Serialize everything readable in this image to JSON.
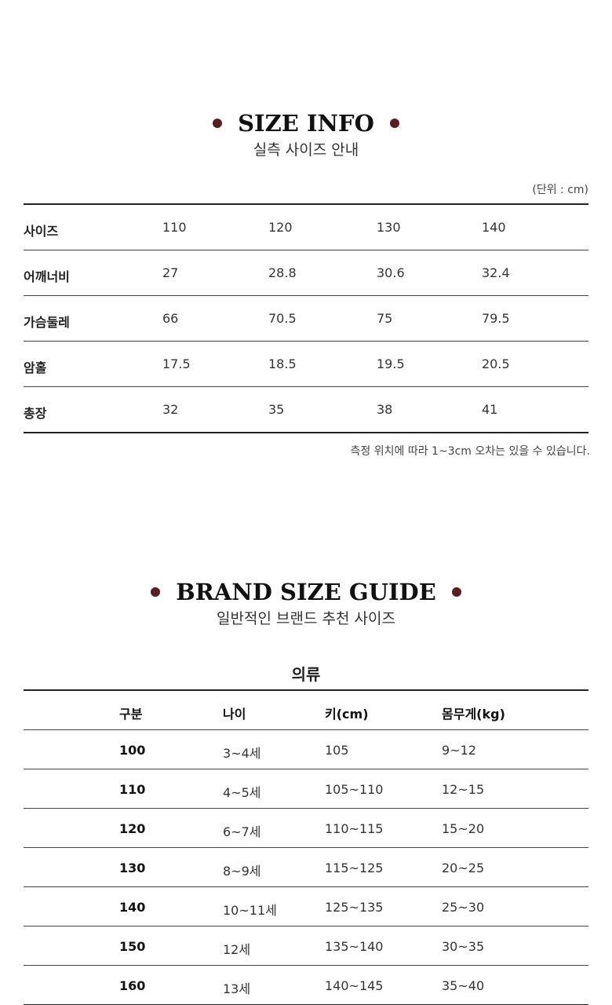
{
  "size_info": {
    "title": "SIZE INFO",
    "subtitle": "실측 사이즈 안내",
    "unit": "(단위 : cm)",
    "rows": [
      {
        "label": "사이즈",
        "values": [
          "110",
          "120",
          "130",
          "140"
        ]
      },
      {
        "label": "어깨너비",
        "values": [
          "27",
          "28.8",
          "30.6",
          "32.4"
        ]
      },
      {
        "label": "가슴둘레",
        "values": [
          "66",
          "70.5",
          "75",
          "79.5"
        ]
      },
      {
        "label": "암홀",
        "values": [
          "17.5",
          "18.5",
          "19.5",
          "20.5"
        ]
      },
      {
        "label": "총장",
        "values": [
          "32",
          "35",
          "38",
          "41"
        ]
      }
    ],
    "note": "측정 위치에 따라 1~3cm 오차는 있을 수 있습니다."
  },
  "brand_guide": {
    "title": "BRAND SIZE GUIDE",
    "subtitle": "일반적인 브랜드 추천 사이즈",
    "category": "의류",
    "headers": [
      "구분",
      "나이",
      "키(cm)",
      "몸무게(kg)"
    ],
    "rows": [
      [
        "100",
        "3~4세",
        "105",
        "9~12"
      ],
      [
        "110",
        "4~5세",
        "105~110",
        "12~15"
      ],
      [
        "120",
        "6~7세",
        "110~115",
        "15~20"
      ],
      [
        "130",
        "8~9세",
        "115~125",
        "20~25"
      ],
      [
        "140",
        "10~11세",
        "125~135",
        "25~30"
      ],
      [
        "150",
        "12세",
        "135~140",
        "30~35"
      ],
      [
        "160",
        "13세",
        "140~145",
        "35~40"
      ]
    ]
  },
  "colors": {
    "accent_dot": "#5a1e20",
    "text": "#222222"
  }
}
